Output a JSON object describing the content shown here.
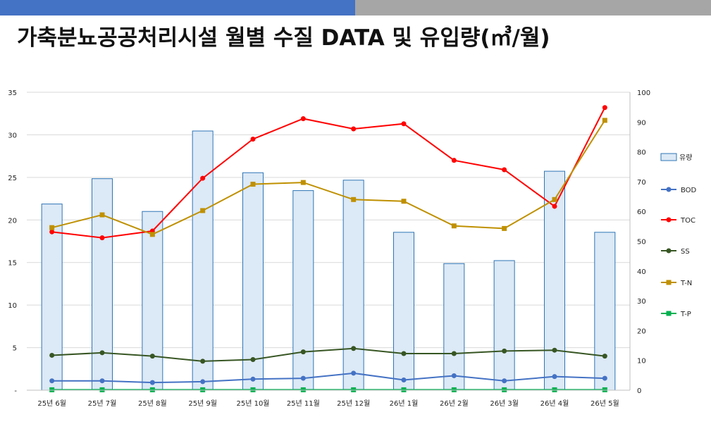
{
  "header": {
    "title": "가축분뇨공공처리시설 월별 수질 DATA 및 유입량(㎥/월)"
  },
  "colors": {
    "header_blue": "#4472c4",
    "header_gray": "#a6a6a6"
  },
  "chart_data": {
    "type": "bar+line",
    "title": "",
    "categories": [
      "25년 6월",
      "25년 7월",
      "25년 8월",
      "25년 9월",
      "25년 10월",
      "25년 11월",
      "25년 12월",
      "26년 1월",
      "26년 2월",
      "26년 3월",
      "26년 4월",
      "26년 5월"
    ],
    "left_axis": {
      "ylim": [
        0,
        35
      ],
      "ticks": [
        "-",
        "5",
        "10",
        "15",
        "20",
        "25",
        "30",
        "35"
      ]
    },
    "right_axis": {
      "ylim": [
        0,
        100
      ],
      "ticks": [
        "0",
        "10",
        "20",
        "30",
        "40",
        "50",
        "60",
        "70",
        "80",
        "90",
        "100"
      ]
    },
    "grid": true,
    "legend_position": "right",
    "bar_series": {
      "name": "유량",
      "axis": "right",
      "color": "#2e75b6",
      "fill": "#dce9f6",
      "values": [
        62.5,
        71,
        60,
        87,
        73,
        67,
        70.5,
        53,
        42.5,
        43.5,
        73.5,
        53
      ]
    },
    "line_series": [
      {
        "name": "BOD",
        "axis": "left",
        "color": "#4472c4",
        "marker": "circle",
        "values": [
          1.1,
          1.1,
          0.9,
          1.0,
          1.3,
          1.4,
          2.0,
          1.2,
          1.7,
          1.1,
          1.6,
          1.4
        ]
      },
      {
        "name": "TOC",
        "axis": "left",
        "color": "#ff0000",
        "marker": "circle",
        "values": [
          18.6,
          17.9,
          18.7,
          24.9,
          29.5,
          31.9,
          30.7,
          31.3,
          27.0,
          25.9,
          21.6,
          33.2
        ]
      },
      {
        "name": "SS",
        "axis": "left",
        "color": "#375623",
        "marker": "circle",
        "values": [
          4.1,
          4.4,
          4.0,
          3.4,
          3.6,
          4.5,
          4.9,
          4.3,
          4.3,
          4.6,
          4.7,
          4.0
        ]
      },
      {
        "name": "T-N",
        "axis": "left",
        "color": "#bf9000",
        "marker": "square",
        "values": [
          19.1,
          20.6,
          18.3,
          21.1,
          24.2,
          24.4,
          22.4,
          22.2,
          19.3,
          19.0,
          22.4,
          31.7
        ]
      },
      {
        "name": "T-P",
        "axis": "left",
        "color": "#00b050",
        "marker": "square",
        "values": [
          0.05,
          0.05,
          0.05,
          0.05,
          0.05,
          0.05,
          0.05,
          0.05,
          0.05,
          0.05,
          0.05,
          0.05
        ]
      }
    ]
  }
}
